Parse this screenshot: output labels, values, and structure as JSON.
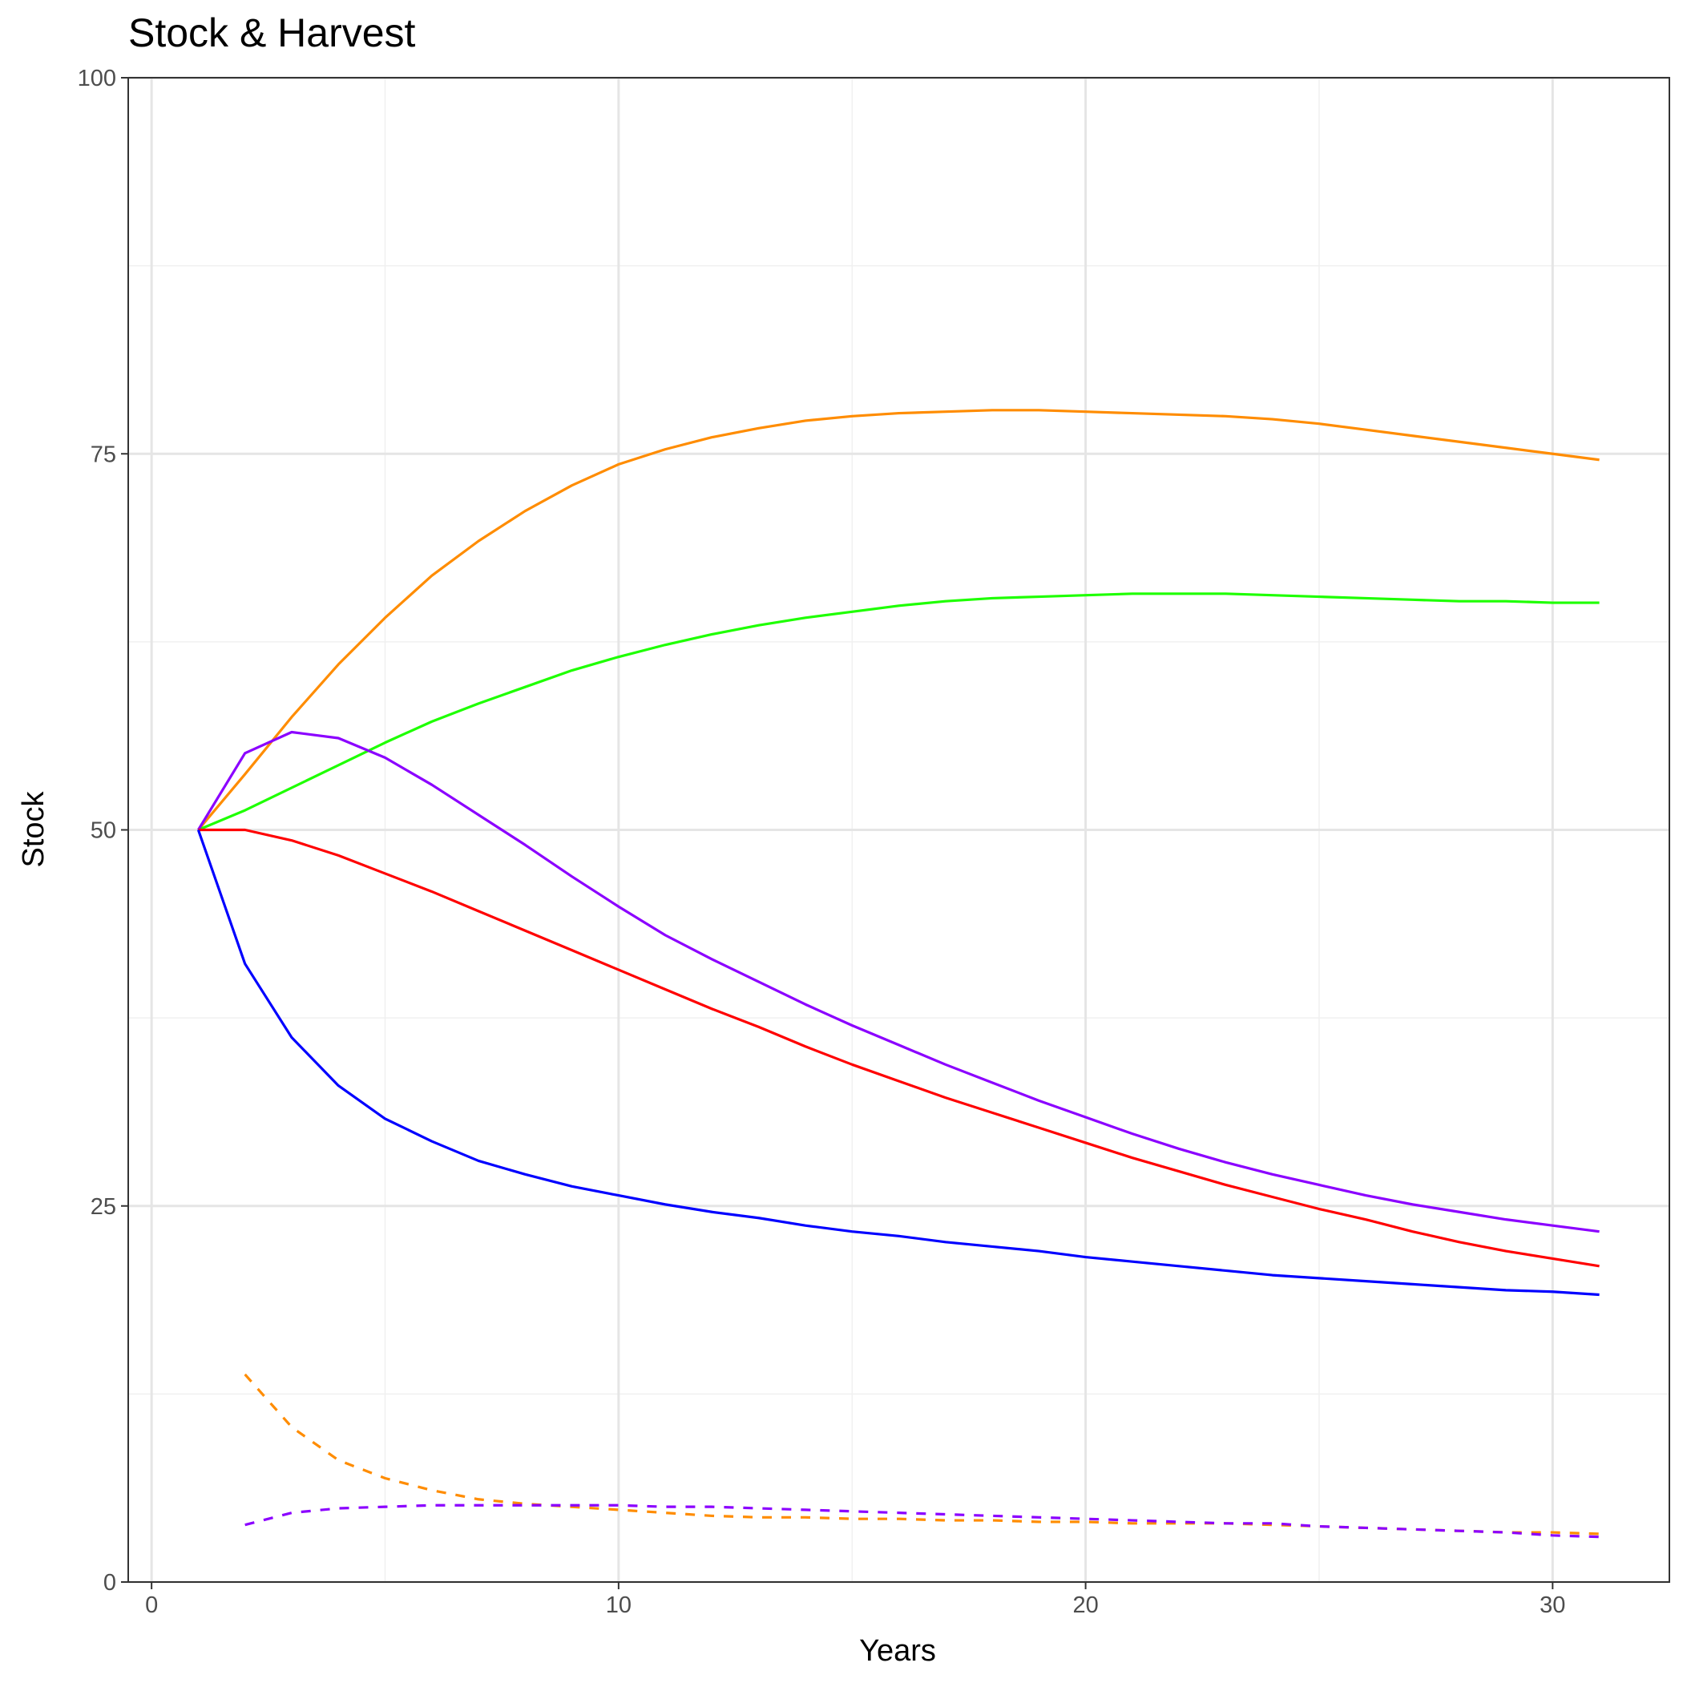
{
  "chart_data": {
    "type": "line",
    "title": "Stock & Harvest",
    "x_label": "Years",
    "y_label": "Stock",
    "x": [
      1,
      2,
      3,
      4,
      5,
      6,
      7,
      8,
      9,
      10,
      11,
      12,
      13,
      14,
      15,
      16,
      17,
      18,
      19,
      20,
      21,
      22,
      23,
      24,
      25,
      26,
      27,
      28,
      29,
      30,
      31
    ],
    "series": [
      {
        "color": "#FF8C00",
        "style": "solid",
        "values": [
          50,
          53.7,
          57.5,
          61.0,
          64.1,
          66.9,
          69.2,
          71.2,
          72.9,
          74.3,
          75.3,
          76.1,
          76.7,
          77.2,
          77.5,
          77.7,
          77.8,
          77.9,
          77.9,
          77.8,
          77.7,
          77.6,
          77.5,
          77.3,
          77.0,
          76.6,
          76.2,
          75.8,
          75.4,
          75.0,
          74.6
        ]
      },
      {
        "color": "#1EFF00",
        "style": "solid",
        "values": [
          50,
          51.3,
          52.8,
          54.3,
          55.8,
          57.2,
          58.4,
          59.5,
          60.6,
          61.5,
          62.3,
          63.0,
          63.6,
          64.1,
          64.5,
          64.9,
          65.2,
          65.4,
          65.5,
          65.6,
          65.7,
          65.7,
          65.7,
          65.6,
          65.5,
          65.4,
          65.3,
          65.2,
          65.2,
          65.1,
          65.1
        ]
      },
      {
        "color": "#8B00FF",
        "style": "solid",
        "values": [
          50,
          55.1,
          56.5,
          56.1,
          54.8,
          53.0,
          51.0,
          49.0,
          46.9,
          44.9,
          43.0,
          41.4,
          39.9,
          38.4,
          37.0,
          35.7,
          34.4,
          33.2,
          32.0,
          30.9,
          29.8,
          28.8,
          27.9,
          27.1,
          26.4,
          25.7,
          25.1,
          24.6,
          24.1,
          23.7,
          23.3
        ]
      },
      {
        "color": "#FF0000",
        "style": "solid",
        "values": [
          50,
          50.0,
          49.3,
          48.3,
          47.1,
          45.9,
          44.6,
          43.3,
          42.0,
          40.7,
          39.4,
          38.1,
          36.9,
          35.6,
          34.4,
          33.3,
          32.2,
          31.2,
          30.2,
          29.2,
          28.2,
          27.3,
          26.4,
          25.6,
          24.8,
          24.1,
          23.3,
          22.6,
          22.0,
          21.5,
          21.0
        ]
      },
      {
        "color": "#0000FF",
        "style": "solid",
        "values": [
          50,
          41.1,
          36.2,
          33.0,
          30.8,
          29.3,
          28.0,
          27.1,
          26.3,
          25.7,
          25.1,
          24.6,
          24.2,
          23.7,
          23.3,
          23.0,
          22.6,
          22.3,
          22.0,
          21.6,
          21.3,
          21.0,
          20.7,
          20.4,
          20.2,
          20.0,
          19.8,
          19.6,
          19.4,
          19.3,
          19.1
        ]
      },
      {
        "color": "#FF8C00",
        "style": "dashed",
        "values": [
          null,
          13.8,
          10.3,
          8.1,
          6.9,
          6.1,
          5.5,
          5.2,
          5.0,
          4.8,
          4.6,
          4.4,
          4.3,
          4.3,
          4.2,
          4.2,
          4.1,
          4.1,
          4.0,
          4.0,
          3.9,
          3.9,
          3.9,
          3.8,
          3.7,
          3.6,
          3.5,
          3.4,
          3.3,
          3.3,
          3.2
        ]
      },
      {
        "color": "#8B00FF",
        "style": "dashed",
        "values": [
          null,
          3.8,
          4.6,
          4.9,
          5.0,
          5.1,
          5.1,
          5.1,
          5.1,
          5.1,
          5.0,
          5.0,
          4.9,
          4.8,
          4.7,
          4.6,
          4.5,
          4.4,
          4.3,
          4.2,
          4.1,
          4.0,
          3.9,
          3.9,
          3.7,
          3.6,
          3.5,
          3.4,
          3.3,
          3.1,
          3.0
        ]
      }
    ],
    "xlim": [
      -0.5,
      32.5
    ],
    "ylim": [
      0,
      100
    ],
    "xticks": [
      0,
      10,
      20,
      30
    ],
    "yticks": [
      0,
      25,
      50,
      75,
      100
    ],
    "x_minor_grid": [
      5,
      15,
      25
    ],
    "y_minor_grid": [
      12.5,
      37.5,
      62.5,
      87.5
    ],
    "grid": true
  }
}
